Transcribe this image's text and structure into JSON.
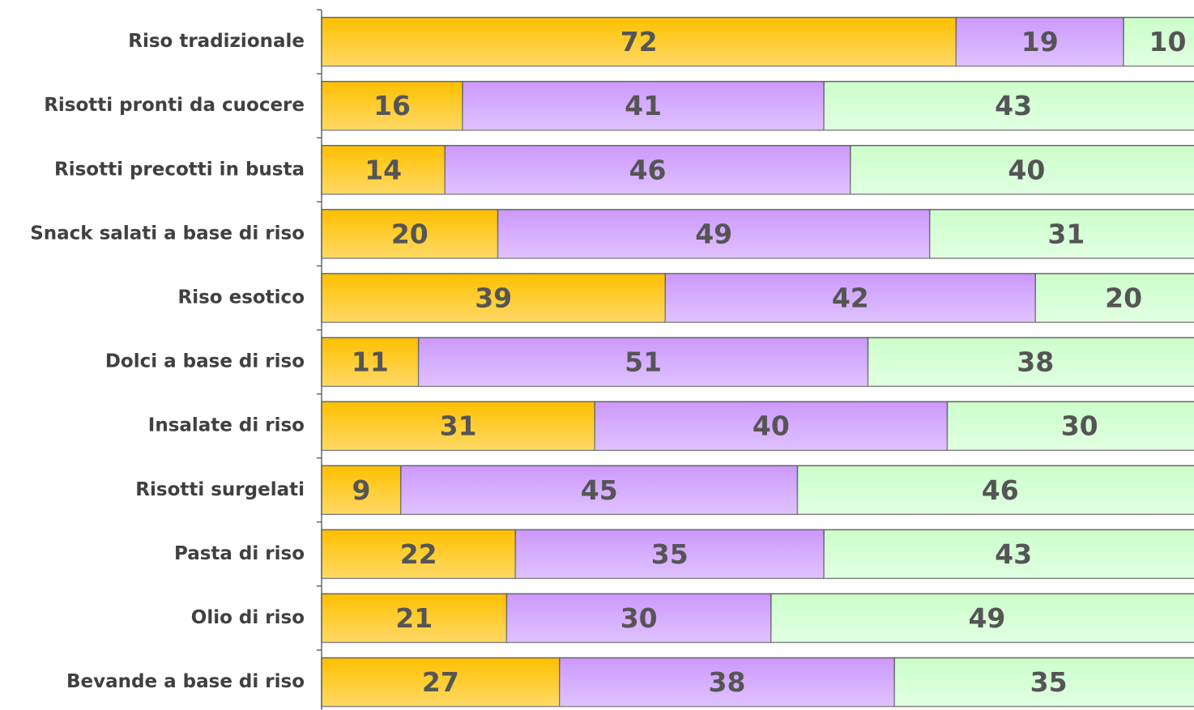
{
  "chart_data": {
    "type": "stacked-barh",
    "categories": [
      "Riso tradizionale",
      "Risotti pronti da cuocere",
      "Risotti precotti in busta",
      "Snack salati a base di riso",
      "Riso esotico",
      "Dolci a base di riso",
      "Insalate di riso",
      "Risotti surgelati",
      "Pasta di riso",
      "Olio di riso",
      "Bevande a base di riso"
    ],
    "series": [
      {
        "color": "#FFC000",
        "values": [
          72,
          16,
          14,
          20,
          39,
          11,
          31,
          9,
          22,
          21,
          27
        ]
      },
      {
        "color": "#CC99FF",
        "values": [
          19,
          41,
          46,
          49,
          42,
          51,
          40,
          45,
          35,
          30,
          38
        ]
      },
      {
        "color": "#CCFFCC",
        "values": [
          10,
          43,
          40,
          31,
          20,
          38,
          30,
          46,
          43,
          49,
          35
        ]
      }
    ],
    "xlim": [
      0,
      100
    ]
  }
}
